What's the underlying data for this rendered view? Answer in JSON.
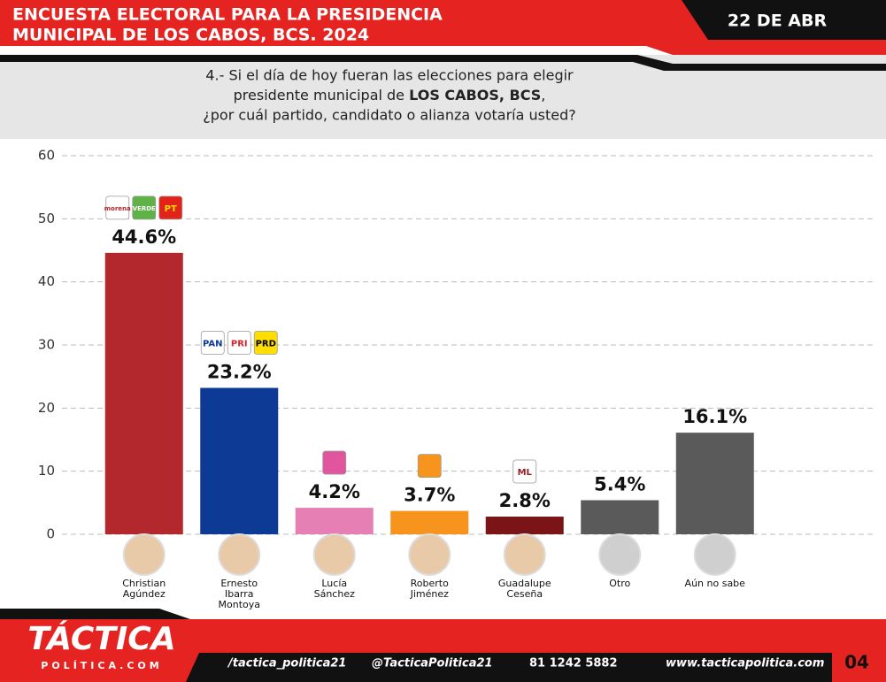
{
  "header": {
    "title_lines": [
      "ENCUESTA ELECTORAL PARA LA PRESIDENCIA",
      "MUNICIPAL DE LOS CABOS, BCS. 2024"
    ],
    "date": "22 DE ABR"
  },
  "question": {
    "line1": "4.- Si el día de hoy fueran las elecciones para elegir",
    "line2_start": "presidente municipal de ",
    "line2_bold": "LOS CABOS, BCS",
    "line2_end": ",",
    "line3": "¿por cuál partido, candidato o alianza votaría usted?"
  },
  "chart_data": {
    "type": "bar",
    "categories": [
      [
        "Christian",
        "Agúndez"
      ],
      [
        "Ernesto",
        "Ibarra",
        "Montoya"
      ],
      [
        "Lucía",
        "Sánchez"
      ],
      [
        "Roberto",
        "Jiménez"
      ],
      [
        "Guadalupe",
        "Ceseña"
      ],
      [
        "Otro"
      ],
      [
        "Aún no sabe"
      ]
    ],
    "values": [
      44.6,
      23.2,
      4.2,
      3.7,
      2.8,
      5.4,
      16.1
    ],
    "value_labels": [
      "44.6%",
      "23.2%",
      "4.2%",
      "3.7%",
      "2.8%",
      "5.4%",
      "16.1%"
    ],
    "colors": [
      "#b3282d",
      "#0d3a94",
      "#e57fb4",
      "#f7941d",
      "#7a1416",
      "#5a5a5a",
      "#5a5a5a"
    ],
    "party_logos": [
      [
        {
          "label": "morena",
          "color": "#ffffff",
          "text": "#b3282d"
        },
        {
          "label": "VERDE",
          "color": "#5fb346",
          "text": "#ffffff"
        },
        {
          "label": "PT",
          "color": "#e2231a",
          "text": "#ffde00"
        }
      ],
      [
        {
          "label": "PAN",
          "color": "#ffffff",
          "text": "#0d3a94"
        },
        {
          "label": "PRI",
          "color": "#ffffff",
          "text": "#d9242b"
        },
        {
          "label": "PRD",
          "color": "#ffde00",
          "text": "#000000"
        }
      ],
      [
        {
          "color": "#e0559e"
        }
      ],
      [
        {
          "color": "#f7941d"
        }
      ],
      [
        {
          "label": "ML",
          "color": "#ffffff",
          "text": "#9b1b1f"
        }
      ],
      [],
      []
    ],
    "ylim": [
      0,
      60
    ],
    "yticks": [
      0,
      10,
      20,
      30,
      40,
      50,
      60
    ],
    "grid": true
  },
  "footer": {
    "logo": "TÁCTICA",
    "logo_sub": "POLÍTICA.COM",
    "facebook": "/tactica_politica21",
    "instagram": "@TacticaPolitica21",
    "phone": "81 1242 5882",
    "web": "www.tacticapolitica.com",
    "page": "04"
  }
}
